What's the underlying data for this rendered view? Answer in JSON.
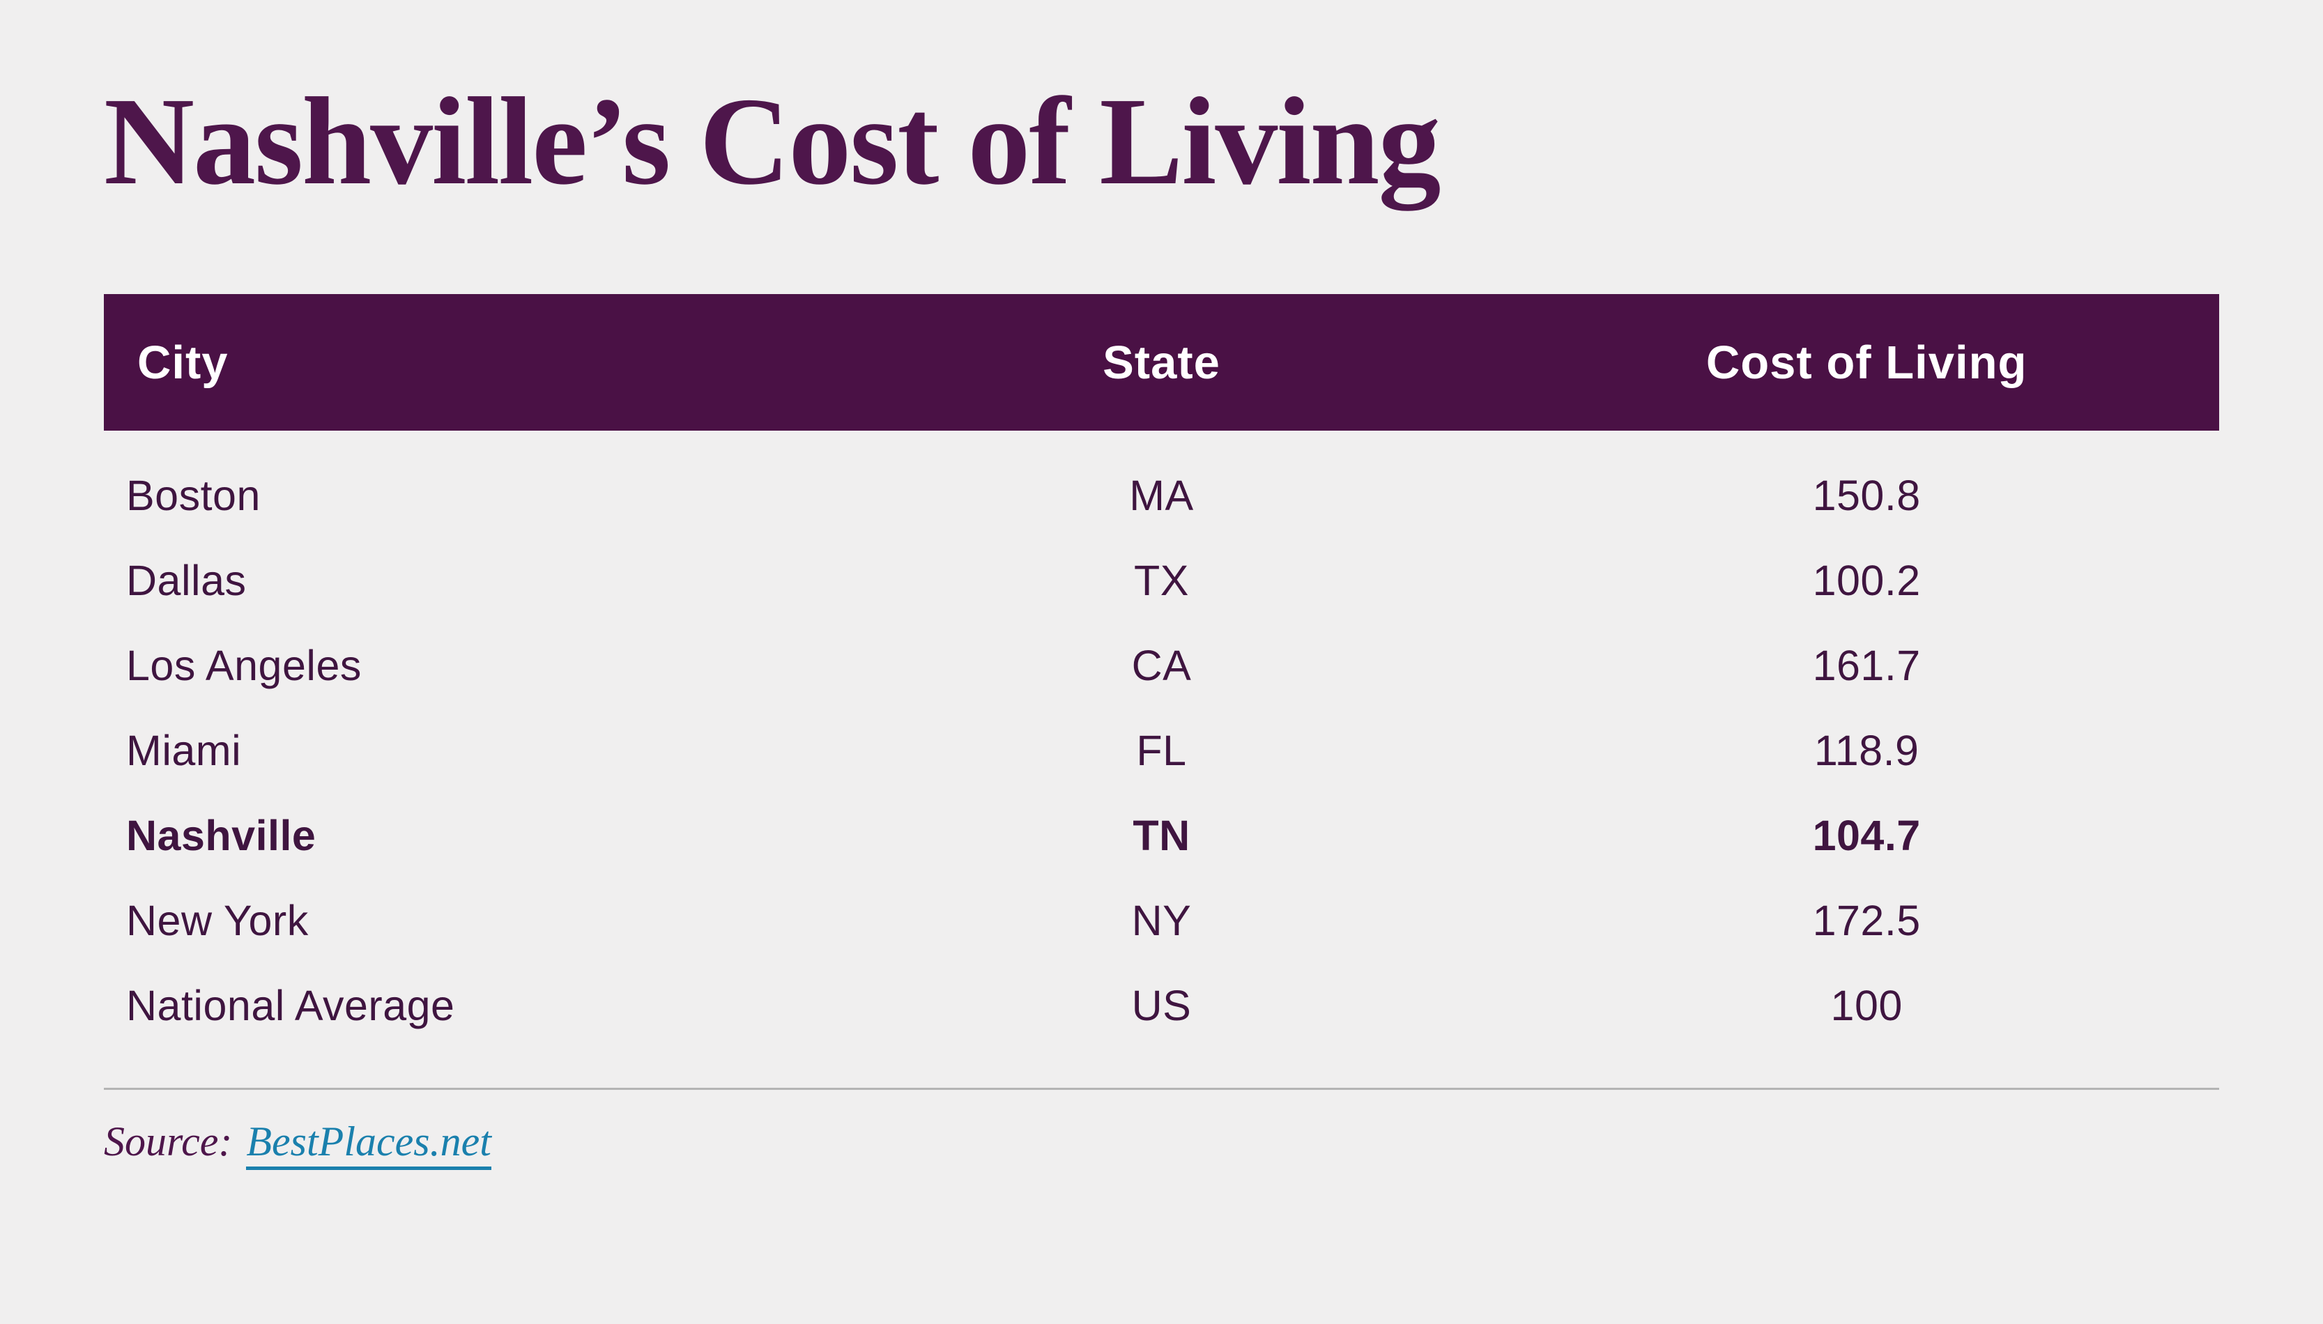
{
  "page": {
    "title": "Nashville’s Cost of Living",
    "background_color": "#f0efef",
    "title_color": "#4e164b"
  },
  "table": {
    "header_bg": "#4a1145",
    "header_text_color": "#ffffff",
    "row_text_color": "#3f1540",
    "columns": [
      "City",
      "State",
      "Cost of Living"
    ],
    "rows": [
      {
        "city": "Boston",
        "state": "MA",
        "cost": "150.8",
        "highlight": false
      },
      {
        "city": "Dallas",
        "state": "TX",
        "cost": "100.2",
        "highlight": false
      },
      {
        "city": "Los Angeles",
        "state": "CA",
        "cost": "161.7",
        "highlight": false
      },
      {
        "city": "Miami",
        "state": "FL",
        "cost": "118.9",
        "highlight": false
      },
      {
        "city": "Nashville",
        "state": "TN",
        "cost": "104.7",
        "highlight": true
      },
      {
        "city": "New York",
        "state": "NY",
        "cost": "172.5",
        "highlight": false
      },
      {
        "city": "National Average",
        "state": "US",
        "cost": "100",
        "highlight": false
      }
    ]
  },
  "source": {
    "label": "Source:",
    "link_text": "BestPlaces.net",
    "link_color": "#1a80ad"
  },
  "chart_data": {
    "type": "table",
    "title": "Nashville's Cost of Living",
    "columns": [
      "City",
      "State",
      "Cost of Living"
    ],
    "rows": [
      [
        "Boston",
        "MA",
        150.8
      ],
      [
        "Dallas",
        "TX",
        100.2
      ],
      [
        "Los Angeles",
        "CA",
        161.7
      ],
      [
        "Miami",
        "FL",
        118.9
      ],
      [
        "Nashville",
        "TN",
        104.7
      ],
      [
        "New York",
        "NY",
        172.5
      ],
      [
        "National Average",
        "US",
        100
      ]
    ],
    "highlighted_row": "Nashville",
    "source": "BestPlaces.net",
    "baseline_note": "National Average = 100"
  }
}
